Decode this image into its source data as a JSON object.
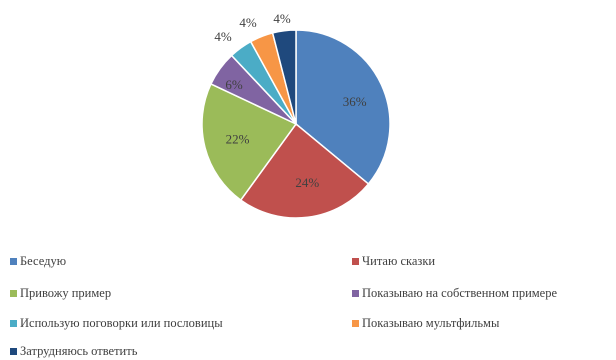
{
  "chart_data": {
    "type": "pie",
    "start_angle_deg": 0,
    "direction": "clockwise",
    "legend_position": "bottom",
    "series": [
      {
        "name": "Беседую",
        "value": 36,
        "label": "36%",
        "color": "#4F81BD"
      },
      {
        "name": "Читаю сказки",
        "value": 24,
        "label": "24%",
        "color": "#C0504D"
      },
      {
        "name": "Привожу пример",
        "value": 22,
        "label": "22%",
        "color": "#9BBB59"
      },
      {
        "name": "Показываю на собственном примере",
        "value": 6,
        "label": "6%",
        "color": "#8064A2"
      },
      {
        "name": "Использую поговорки или пословицы",
        "value": 4,
        "label": "4%",
        "color": "#4BACC6"
      },
      {
        "name": "Показываю мультфильмы",
        "value": 4,
        "label": "4%",
        "color": "#F79646"
      },
      {
        "name": "Затрудняюсь ответить",
        "value": 4,
        "label": "4%",
        "color": "#1F497D"
      }
    ]
  }
}
